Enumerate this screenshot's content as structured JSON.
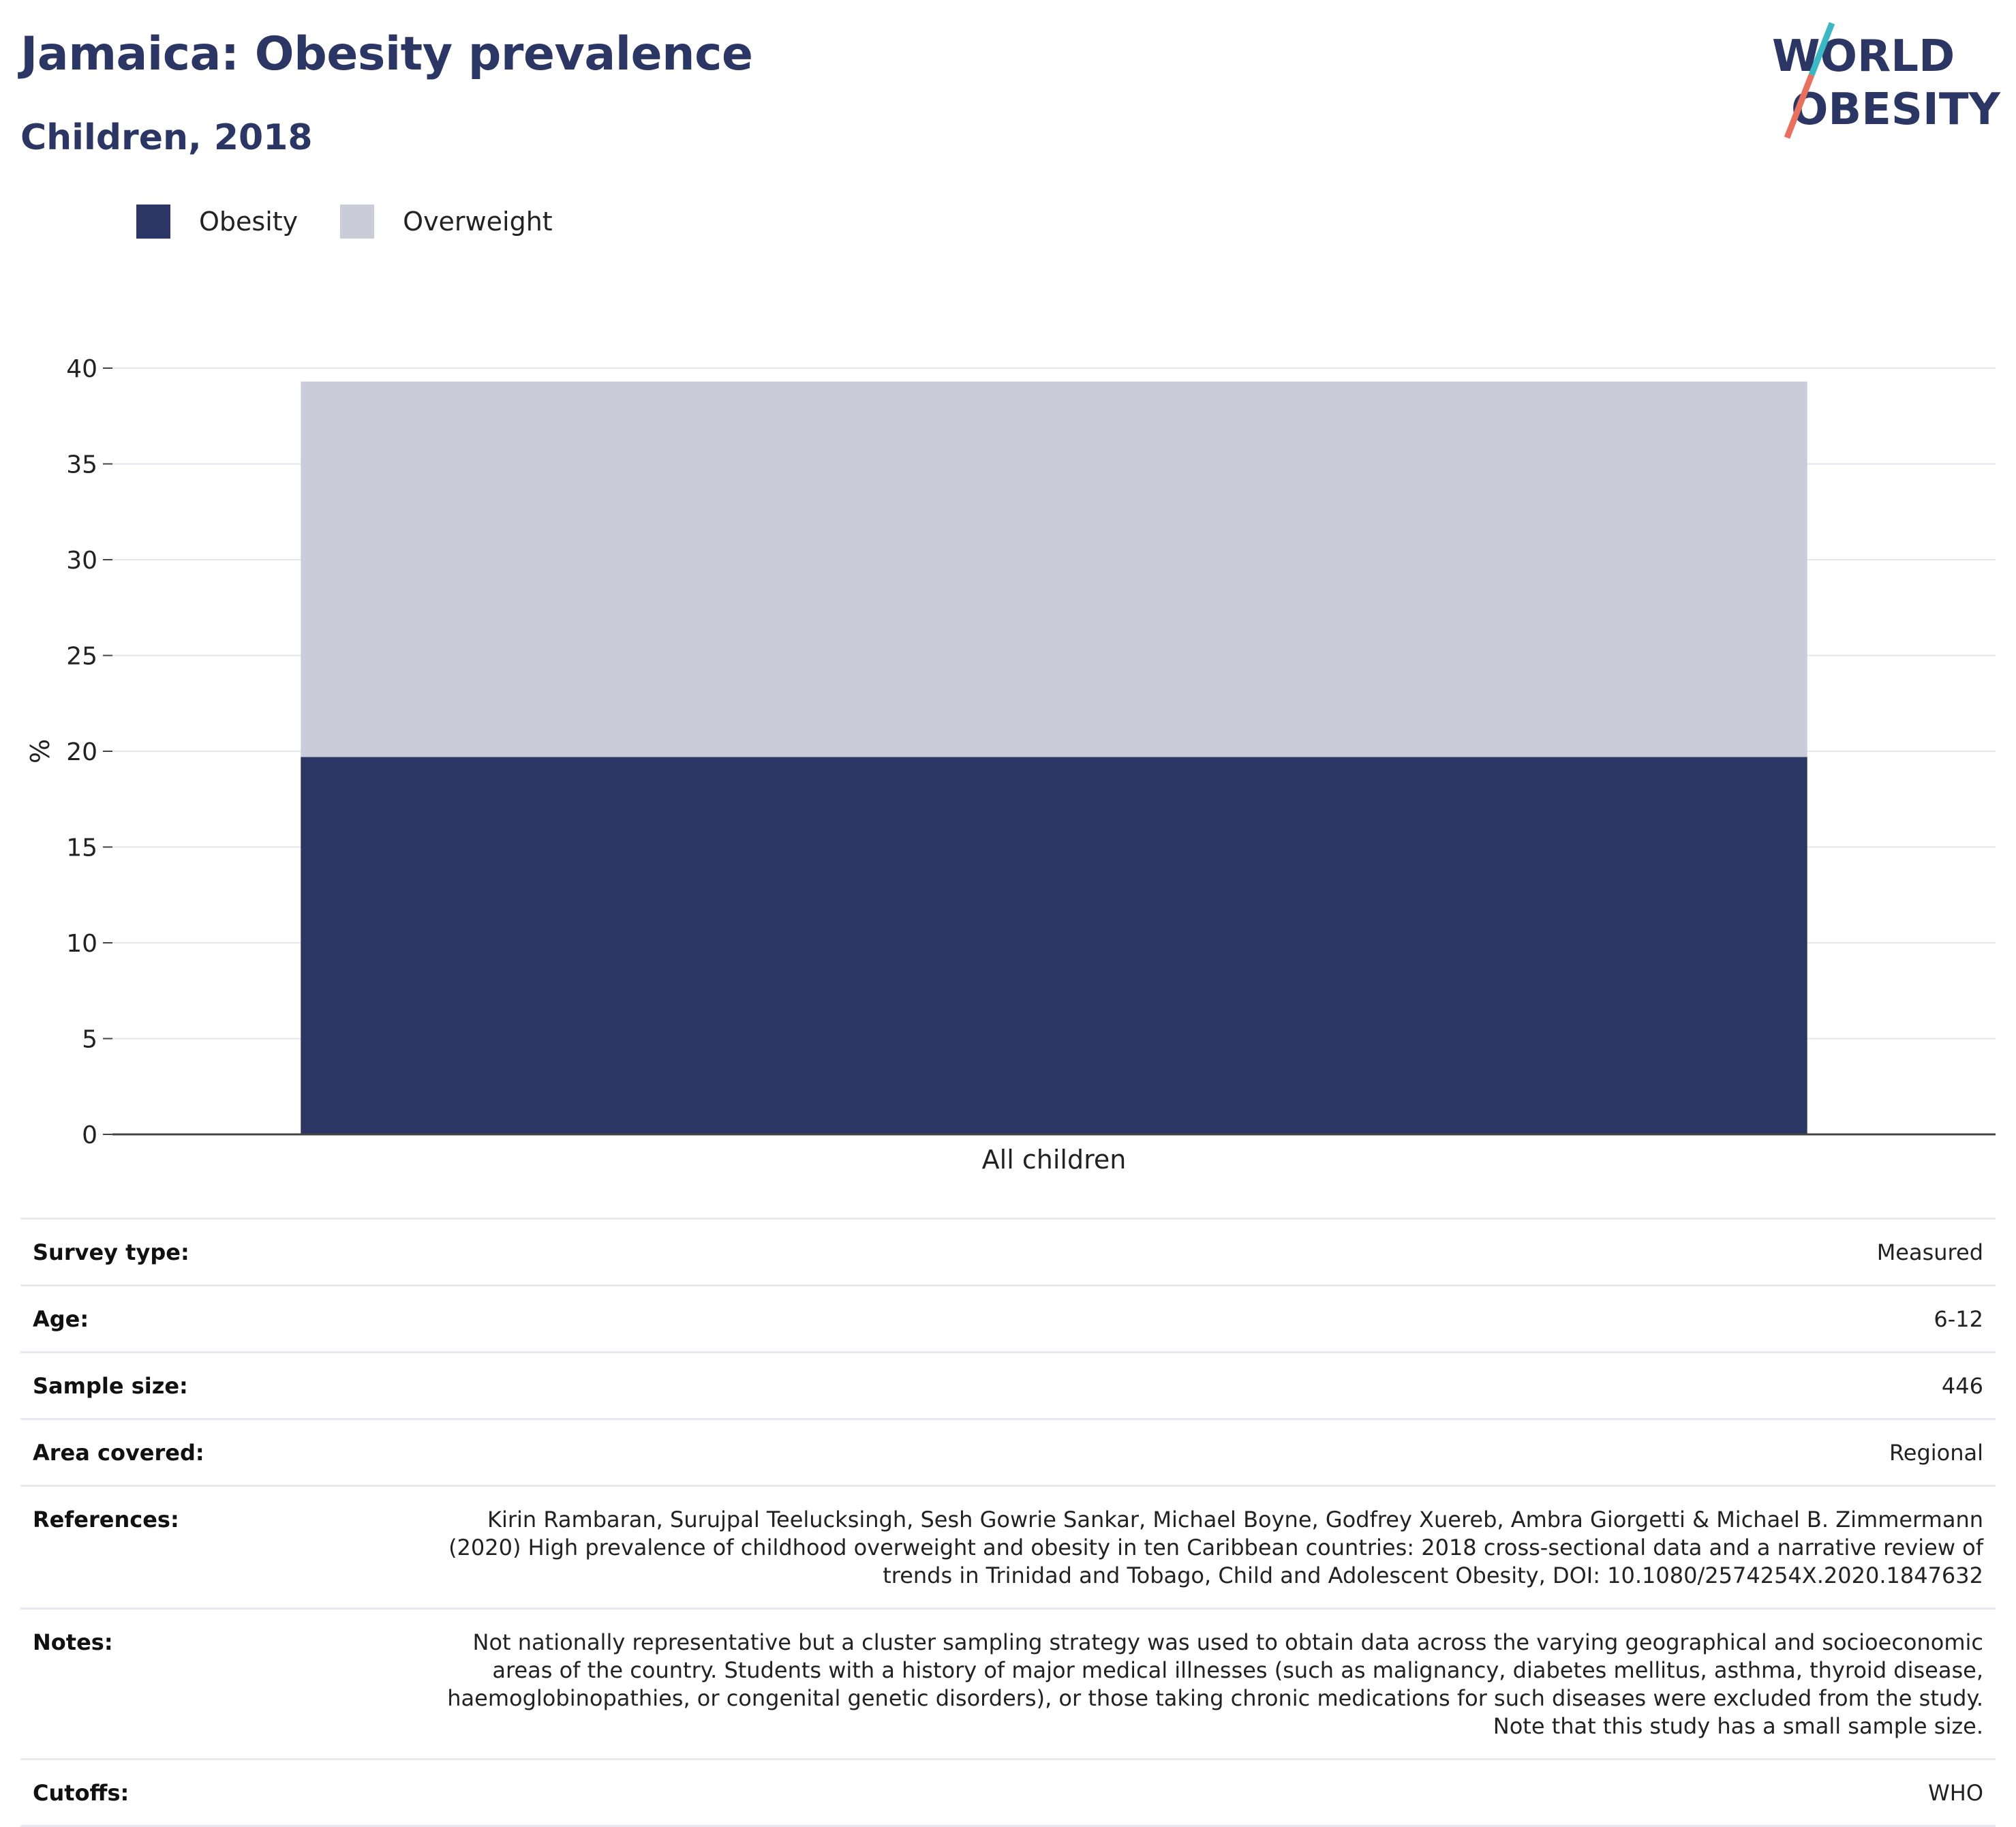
{
  "header": {
    "title": "Jamaica: Obesity prevalence",
    "subtitle": "Children, 2018"
  },
  "logo": {
    "line1": "WORLD",
    "line2": "OBESITY",
    "colors": {
      "text": "#2b3664",
      "slash_top": "#3bb8c3",
      "slash_bottom": "#e8705f"
    }
  },
  "legend": {
    "items": [
      {
        "label": "Obesity",
        "color": "#2b3664"
      },
      {
        "label": "Overweight",
        "color": "#cacdd9"
      }
    ]
  },
  "chart_data": {
    "type": "bar",
    "stacked": true,
    "categories": [
      "All children"
    ],
    "series": [
      {
        "name": "Obesity",
        "values": [
          19.7
        ],
        "color": "#2b3664"
      },
      {
        "name": "Overweight",
        "values": [
          19.6
        ],
        "color": "#cacdd9"
      }
    ],
    "ylabel": "%",
    "ylim": [
      0,
      40
    ],
    "yticks": [
      0,
      5,
      10,
      15,
      20,
      25,
      30,
      35,
      40
    ],
    "grid": true,
    "legend_position": "top-left"
  },
  "details": [
    {
      "label": "Survey type:",
      "value": "Measured"
    },
    {
      "label": "Age:",
      "value": "6-12"
    },
    {
      "label": "Sample size:",
      "value": "446"
    },
    {
      "label": "Area covered:",
      "value": "Regional"
    },
    {
      "label": "References:",
      "value": "Kirin Rambaran, Surujpal Teelucksingh, Sesh Gowrie Sankar, Michael Boyne, Godfrey Xuereb, Ambra Giorgetti & Michael B. Zimmermann (2020) High prevalence of childhood overweight and obesity in ten Caribbean countries: 2018 cross-sectional data and a narrative review of trends in Trinidad and Tobago, Child and Adolescent Obesity, DOI: 10.1080/2574254X.2020.1847632"
    },
    {
      "label": "Notes:",
      "value": "Not nationally representative but a cluster sampling strategy was used to obtain data across the varying geographical and socioeconomic areas of the country. Students with a history of major medical illnesses (such as malignancy, diabetes mellitus, asthma, thyroid disease, haemoglobinopathies, or congenital genetic disorders), or those taking chronic medications for such diseases were excluded from the study. Note that this study has a small sample size."
    },
    {
      "label": "Cutoffs:",
      "value": "WHO"
    }
  ]
}
